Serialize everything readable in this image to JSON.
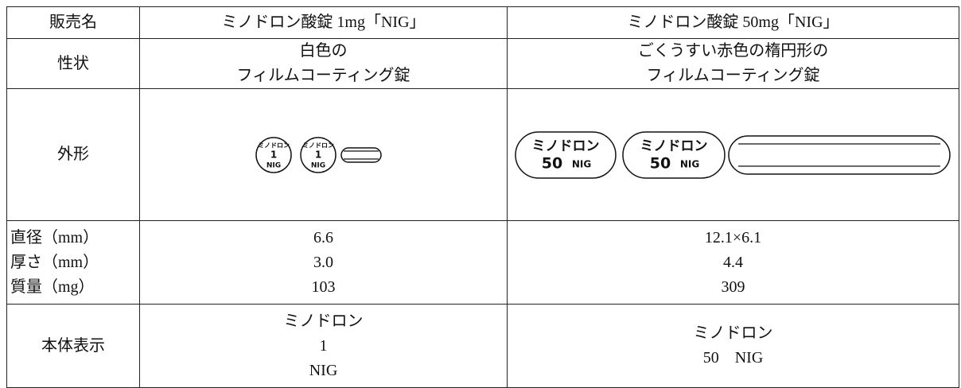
{
  "table": {
    "columns": [
      "販売名",
      "ミノドロン酸錠 1mg「NIG」",
      "ミノドロン酸錠 50mg「NIG」"
    ],
    "rows": [
      {
        "label": "性状",
        "cells": [
          [
            "白色の",
            "フィルムコーティング錠"
          ],
          [
            "ごくうすい赤色の楕円形の",
            "フィルムコーティング錠"
          ]
        ]
      },
      {
        "label": "外形",
        "cells": [
          {
            "marking": [
              "ミノドロン",
              "1",
              "NIG"
            ]
          },
          {
            "marking": [
              "ミノドロン",
              "50",
              "NIG"
            ]
          }
        ]
      },
      {
        "label": [
          "直径（mm）",
          "厚さ（mm）",
          "質量（mg）"
        ],
        "cells": [
          [
            "6.6",
            "3.0",
            "103"
          ],
          [
            "12.1×6.1",
            "4.4",
            "309"
          ]
        ]
      },
      {
        "label": "本体表示",
        "cells": [
          [
            "ミノドロン",
            "1",
            "NIG"
          ],
          [
            "ミノドロン",
            "50　NIG"
          ]
        ]
      }
    ]
  }
}
